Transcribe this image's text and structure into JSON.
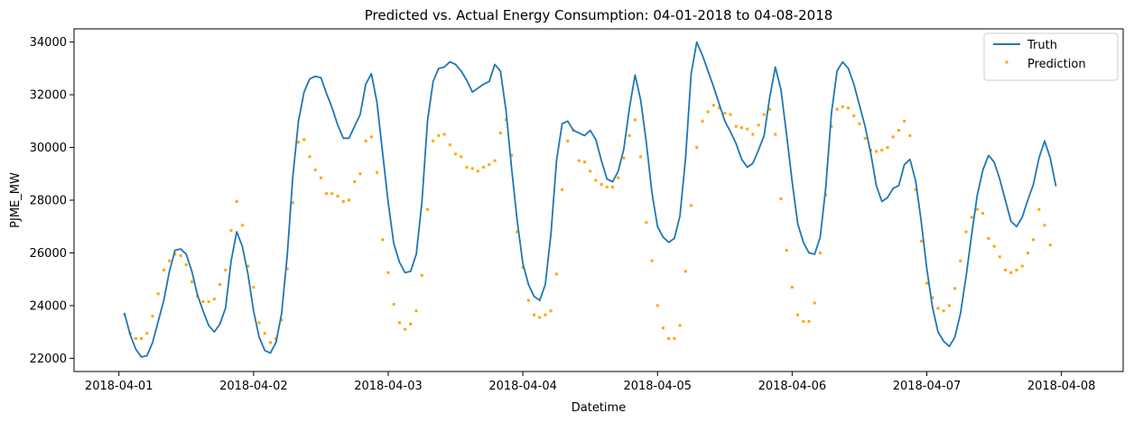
{
  "chart_data": {
    "type": "line",
    "title": "Predicted vs. Actual Energy Consumption: 04-01-2018 to 04-08-2018",
    "xlabel": "Datetime",
    "ylabel": "PJME_MW",
    "x_start": "2018-04-01 01:00",
    "x_step_hours": 1,
    "xlim": [
      "2018-03-31 16:00",
      "2018-04-08 11:00"
    ],
    "ylim": [
      21500,
      34500
    ],
    "xticks": [
      "2018-04-01",
      "2018-04-02",
      "2018-04-03",
      "2018-04-04",
      "2018-04-05",
      "2018-04-06",
      "2018-04-07",
      "2018-04-08"
    ],
    "yticks": [
      22000,
      24000,
      26000,
      28000,
      30000,
      32000,
      34000
    ],
    "ytick_labels": [
      "22000",
      "24000",
      "26000",
      "28000",
      "30000",
      "32000",
      "34000"
    ],
    "grid": false,
    "legend_position": "top-right",
    "series": [
      {
        "name": "Truth",
        "style": "line",
        "color": "#1f77b4",
        "values": [
          23700,
          22900,
          22350,
          22050,
          22100,
          22600,
          23400,
          24200,
          25300,
          26100,
          26150,
          25950,
          25300,
          24400,
          23800,
          23250,
          23000,
          23300,
          23900,
          25700,
          26800,
          26250,
          25200,
          23800,
          22800,
          22300,
          22200,
          22600,
          23700,
          25900,
          28900,
          31000,
          32100,
          32600,
          32700,
          32650,
          32050,
          31500,
          30850,
          30350,
          30350,
          30800,
          31250,
          32400,
          32800,
          31700,
          29800,
          27900,
          26350,
          25650,
          25250,
          25300,
          25950,
          27900,
          31000,
          32500,
          33000,
          33050,
          33250,
          33150,
          32900,
          32550,
          32100,
          32250,
          32400,
          32500,
          33150,
          32900,
          31400,
          29200,
          27200,
          25600,
          24800,
          24350,
          24200,
          24800,
          26700,
          29500,
          30900,
          31000,
          30650,
          30550,
          30450,
          30650,
          30300,
          29500,
          28800,
          28700,
          29100,
          29950,
          31500,
          32750,
          31800,
          30200,
          28300,
          27000,
          26600,
          26400,
          26550,
          27400,
          29600,
          32800,
          34000,
          33500,
          32900,
          32300,
          31650,
          31000,
          30600,
          30150,
          29550,
          29250,
          29400,
          29900,
          30450,
          31900,
          33050,
          32200,
          30500,
          28700,
          27100,
          26400,
          26000,
          25950,
          26600,
          28500,
          31300,
          32900,
          33250,
          33000,
          32400,
          31600,
          30800,
          29800,
          28550,
          27950,
          28100,
          28450,
          28550,
          29350,
          29550,
          28750,
          27200,
          25400,
          23950,
          23000,
          22650,
          22450,
          22800,
          23700,
          25100,
          26700,
          28200,
          29150,
          29700,
          29450,
          28800,
          28000,
          27200,
          27000,
          27350,
          28000,
          28600,
          29600,
          30250,
          29600,
          28550
        ]
      },
      {
        "name": "Prediction",
        "style": "scatter",
        "color": "#ffa500",
        "values": [
          23650,
          22950,
          22750,
          22750,
          22950,
          23600,
          24450,
          25350,
          25700,
          25950,
          25900,
          25550,
          24900,
          24350,
          24150,
          24150,
          24250,
          24800,
          25350,
          26850,
          27950,
          27050,
          25500,
          24700,
          23350,
          22950,
          22600,
          22750,
          23450,
          25400,
          27900,
          30200,
          30300,
          29650,
          29150,
          28850,
          28250,
          28250,
          28150,
          27950,
          28000,
          28700,
          29000,
          30250,
          30400,
          29050,
          26500,
          25250,
          24050,
          23350,
          23100,
          23300,
          23800,
          25150,
          27650,
          30250,
          30450,
          30500,
          30100,
          29750,
          29650,
          29250,
          29200,
          29100,
          29250,
          29350,
          29500,
          30550,
          31050,
          29700,
          26800,
          25450,
          24200,
          23650,
          23550,
          23650,
          23800,
          25200,
          28400,
          30250,
          30650,
          29500,
          29450,
          29100,
          28750,
          28600,
          28500,
          28500,
          28850,
          29600,
          30450,
          31050,
          29650,
          27150,
          25700,
          24000,
          23150,
          22750,
          22750,
          23250,
          25300,
          27800,
          30000,
          31000,
          31350,
          31600,
          31500,
          31300,
          31250,
          30800,
          30750,
          30700,
          30500,
          30850,
          31250,
          31450,
          30500,
          28050,
          26100,
          24700,
          23650,
          23400,
          23400,
          24100,
          26000,
          28200,
          30800,
          31450,
          31550,
          31500,
          31200,
          30900,
          30350,
          29900,
          29850,
          29900,
          30000,
          30400,
          30650,
          31000,
          30450,
          28400,
          26450,
          24850,
          24300,
          23900,
          23800,
          24000,
          24650,
          25700,
          26800,
          27350,
          27650,
          27500,
          26550,
          26250,
          25850,
          25350,
          25250,
          25350,
          25500,
          26000,
          26500,
          27650,
          27050,
          26300
        ]
      }
    ]
  }
}
